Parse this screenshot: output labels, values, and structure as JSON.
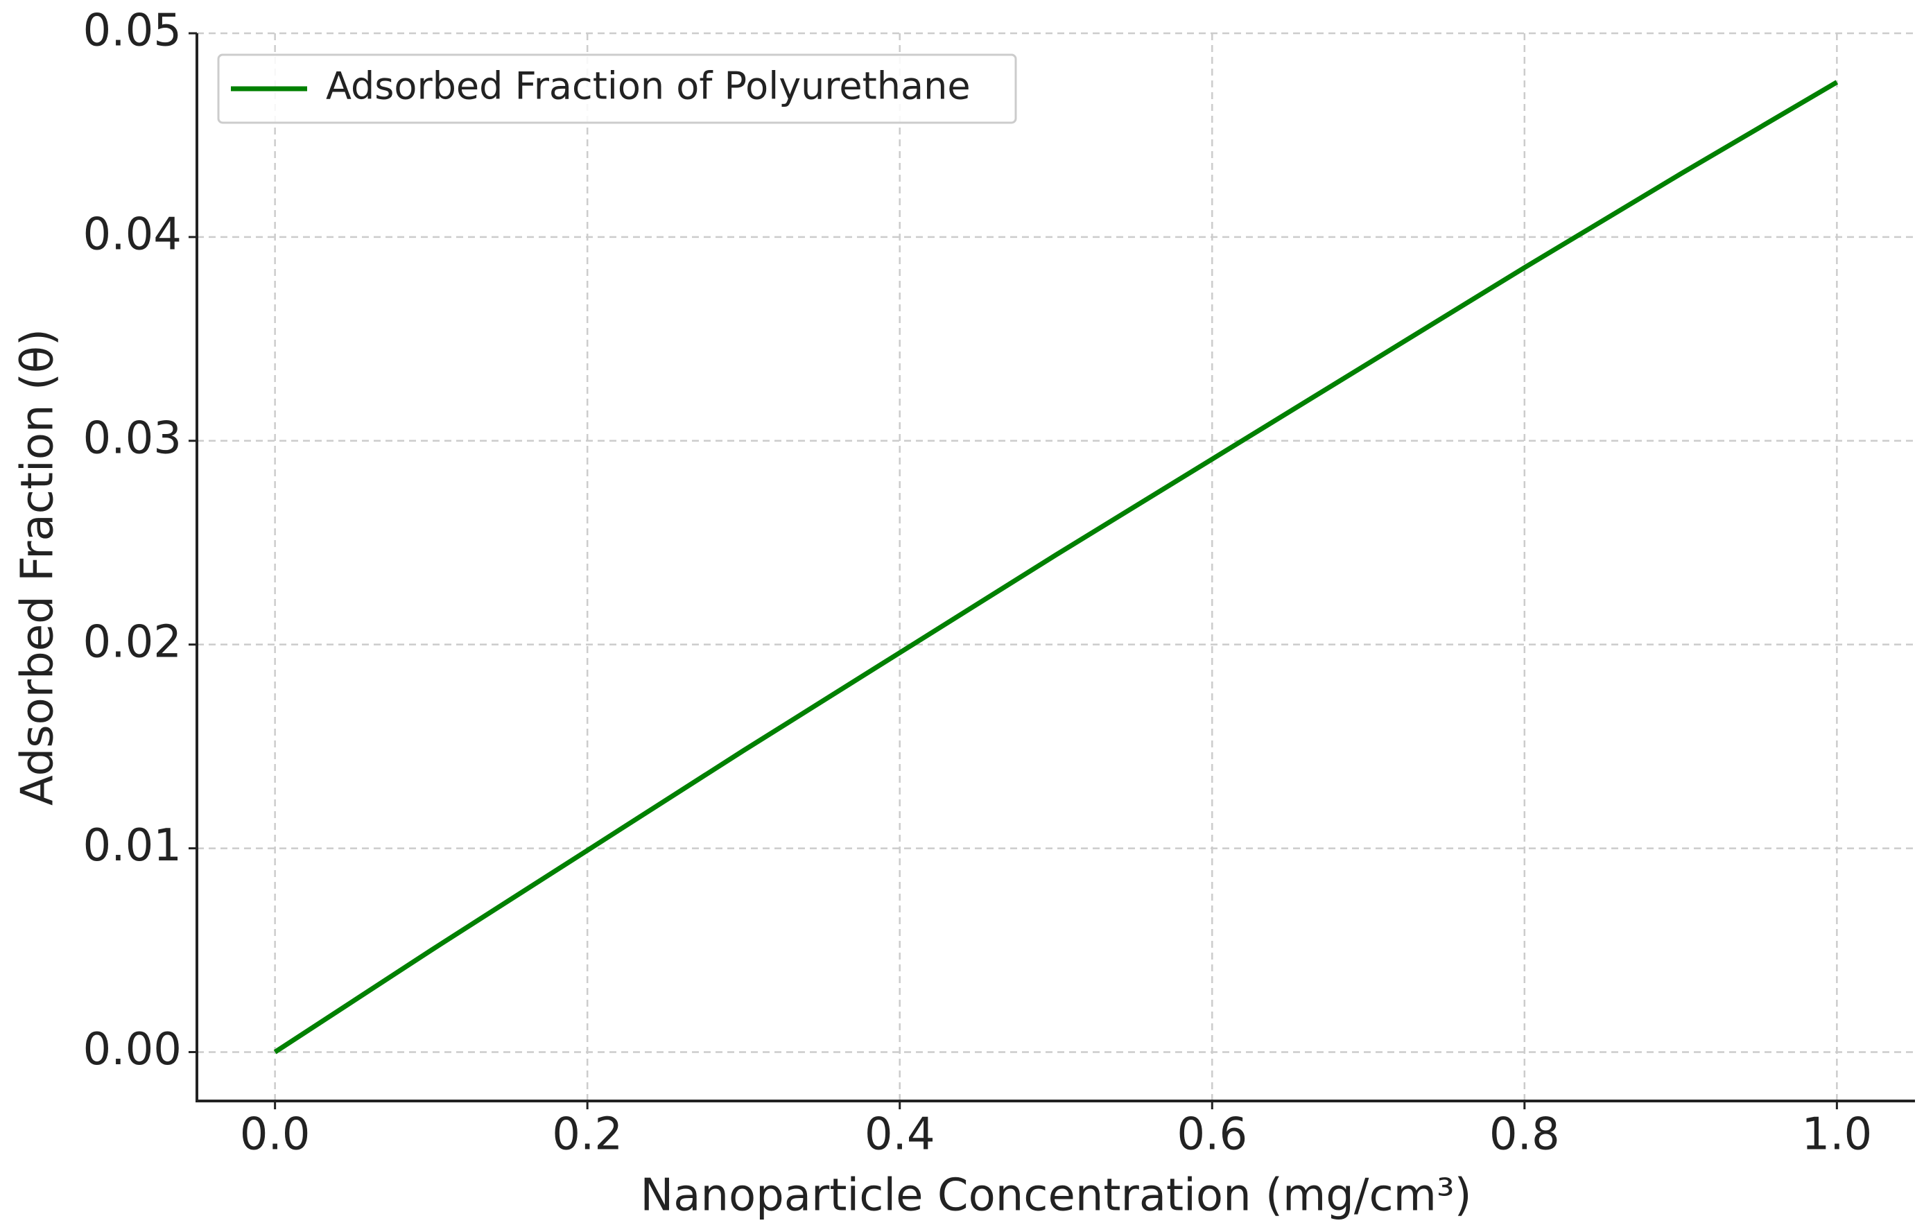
{
  "chart_data": {
    "type": "line",
    "xlabel": "Nanoparticle Concentration (mg/cm³)",
    "ylabel": "Adsorbed Fraction (θ)",
    "x": [
      0,
      0.1,
      0.2,
      0.3,
      0.4,
      0.5,
      0.6,
      0.7,
      0.8,
      0.9,
      1.0
    ],
    "series": [
      {
        "name": "Adsorbed Fraction of Polyurethane",
        "color": "#008000",
        "values": [
          0,
          0.005,
          0.0099,
          0.0148,
          0.0196,
          0.0244,
          0.0291,
          0.0338,
          0.0385,
          0.0431,
          0.0476
        ]
      }
    ],
    "xlim": [
      -0.05,
      1.05
    ],
    "ylim": [
      -0.0024,
      0.05
    ],
    "xticks": [
      {
        "value": 0,
        "label": "0.0"
      },
      0.2,
      0.4,
      0.6,
      0.8,
      {
        "value": 1,
        "label": "1.0"
      }
    ],
    "yticks": [
      {
        "value": 0,
        "label": "0.00"
      },
      0.01,
      0.02,
      0.03,
      0.04,
      0.05
    ],
    "grid": true,
    "legend": "upper left"
  }
}
